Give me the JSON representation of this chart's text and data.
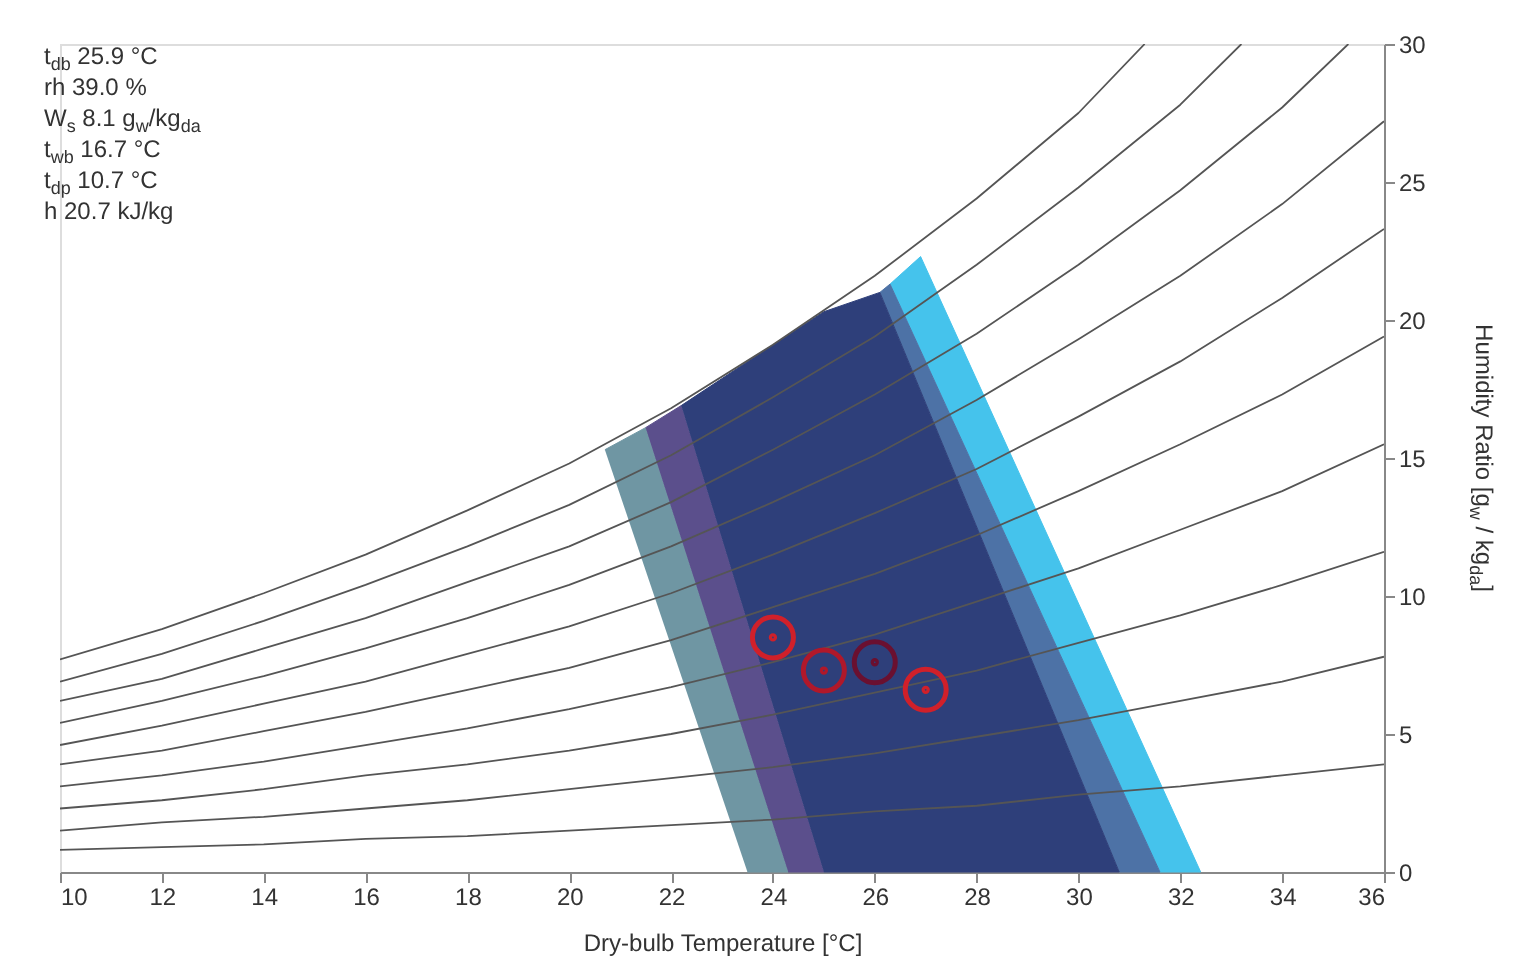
{
  "chart_data": {
    "type": "line",
    "xlabel": "Dry-bulb Temperature [°C]",
    "ylabel": "Humidity Ratio [g$_{w}$ / kg$_{da}$]",
    "annotations": [
      "t$_{db}$ 25.9 °C",
      "rh 39.0 %",
      "W$_{s}$ 8.1 g$_{w}$/kg$_{da}$",
      "t$_{wb}$ 16.7 °C",
      "t$_{dp}$ 10.7 °C",
      "h 20.7 kJ/kg"
    ],
    "xlim": [
      10,
      36
    ],
    "ylim": [
      0,
      30
    ],
    "xticks": [
      10,
      12,
      14,
      16,
      18,
      20,
      22,
      24,
      26,
      28,
      30,
      32,
      34,
      36
    ],
    "yticks": [
      0,
      5,
      10,
      15,
      20,
      25,
      30
    ],
    "grid": false,
    "series": [
      {
        "type": "area",
        "color": "#45c3ec",
        "x": [
          26.3,
          26.9,
          32.4,
          31.6
        ],
        "values": [
          21.3,
          22.3,
          0,
          0
        ]
      },
      {
        "type": "area",
        "color": "#4d72a6",
        "x": [
          26.1,
          26.3,
          31.6,
          30.8
        ],
        "values": [
          21.0,
          21.3,
          0,
          0
        ]
      },
      {
        "type": "area",
        "color": "#6f96a3",
        "x": [
          20.7,
          21.5,
          24.3,
          23.5
        ],
        "values": [
          15.3,
          16.1,
          0,
          0
        ]
      },
      {
        "type": "area",
        "color": "#5b4f8c",
        "x": [
          21.5,
          22.2,
          25.0,
          24.3
        ],
        "values": [
          16.1,
          16.9,
          0,
          0
        ]
      },
      {
        "type": "area",
        "color": "#2e3f7a",
        "x": [
          22.2,
          24,
          25,
          26.1,
          30.8,
          25.0
        ],
        "values": [
          16.9,
          19.1,
          20.3,
          21.0,
          0,
          0
        ]
      },
      {
        "color": "#555555",
        "x": [
          10,
          12,
          14,
          16,
          18,
          20,
          22,
          24,
          26,
          28,
          30,
          31.3
        ],
        "values": [
          7.7,
          8.8,
          10.1,
          11.5,
          13.1,
          14.8,
          16.8,
          19.1,
          21.6,
          24.4,
          27.5,
          30.0
        ]
      },
      {
        "color": "#555555",
        "x": [
          10,
          12,
          14,
          16,
          18,
          20,
          22,
          24,
          26,
          28,
          30,
          32,
          33.2
        ],
        "values": [
          6.9,
          7.9,
          9.1,
          10.4,
          11.8,
          13.3,
          15.1,
          17.2,
          19.4,
          22.0,
          24.8,
          27.8,
          30.0
        ]
      },
      {
        "color": "#555555",
        "x": [
          10,
          12,
          14,
          16,
          18,
          20,
          22,
          24,
          26,
          28,
          30,
          32,
          34,
          35.3
        ],
        "values": [
          6.2,
          7.0,
          8.1,
          9.2,
          10.5,
          11.8,
          13.4,
          15.3,
          17.3,
          19.5,
          22.0,
          24.7,
          27.7,
          30.0
        ]
      },
      {
        "color": "#555555",
        "x": [
          10,
          12,
          14,
          16,
          18,
          20,
          22,
          24,
          26,
          28,
          30,
          32,
          34,
          36
        ],
        "values": [
          5.4,
          6.2,
          7.1,
          8.1,
          9.2,
          10.4,
          11.8,
          13.4,
          15.1,
          17.1,
          19.3,
          21.6,
          24.2,
          27.2
        ]
      },
      {
        "color": "#555555",
        "x": [
          10,
          12,
          14,
          16,
          18,
          20,
          22,
          24,
          26,
          28,
          30,
          32,
          34,
          36
        ],
        "values": [
          4.6,
          5.3,
          6.1,
          6.9,
          7.9,
          8.9,
          10.1,
          11.5,
          13.0,
          14.6,
          16.5,
          18.5,
          20.8,
          23.3
        ]
      },
      {
        "color": "#555555",
        "x": [
          10,
          12,
          14,
          16,
          18,
          20,
          22,
          24,
          26,
          28,
          30,
          32,
          34,
          36
        ],
        "values": [
          3.9,
          4.4,
          5.1,
          5.8,
          6.6,
          7.4,
          8.4,
          9.6,
          10.8,
          12.2,
          13.8,
          15.5,
          17.3,
          19.4
        ]
      },
      {
        "color": "#555555",
        "x": [
          10,
          12,
          14,
          16,
          18,
          20,
          22,
          24,
          26,
          28,
          30,
          32,
          34,
          36
        ],
        "values": [
          3.1,
          3.5,
          4.0,
          4.6,
          5.2,
          5.9,
          6.7,
          7.6,
          8.6,
          9.8,
          11.0,
          12.4,
          13.8,
          15.5
        ]
      },
      {
        "color": "#555555",
        "x": [
          10,
          12,
          14,
          16,
          18,
          20,
          22,
          24,
          26,
          28,
          30,
          32,
          34,
          36
        ],
        "values": [
          2.3,
          2.6,
          3.0,
          3.5,
          3.9,
          4.4,
          5.0,
          5.7,
          6.5,
          7.3,
          8.3,
          9.3,
          10.4,
          11.6
        ]
      },
      {
        "color": "#555555",
        "x": [
          10,
          12,
          14,
          16,
          18,
          20,
          22,
          24,
          26,
          28,
          30,
          32,
          34,
          36
        ],
        "values": [
          1.5,
          1.8,
          2.0,
          2.3,
          2.6,
          3.0,
          3.4,
          3.8,
          4.3,
          4.9,
          5.5,
          6.2,
          6.9,
          7.8
        ]
      },
      {
        "color": "#555555",
        "x": [
          10,
          12,
          14,
          16,
          18,
          20,
          22,
          24,
          26,
          28,
          30,
          32,
          34,
          36
        ],
        "values": [
          0.8,
          0.9,
          1.0,
          1.2,
          1.3,
          1.5,
          1.7,
          1.9,
          2.2,
          2.4,
          2.8,
          3.1,
          3.5,
          3.9
        ]
      },
      {
        "type": "scatter",
        "marker": "circle",
        "x": [
          24.0,
          25.0,
          26.0,
          27.0
        ],
        "values": [
          8.5,
          7.3,
          7.6,
          6.6
        ],
        "colors": [
          "#d0202a",
          "#b0182a",
          "#6a1030",
          "#d0202a"
        ]
      }
    ]
  }
}
